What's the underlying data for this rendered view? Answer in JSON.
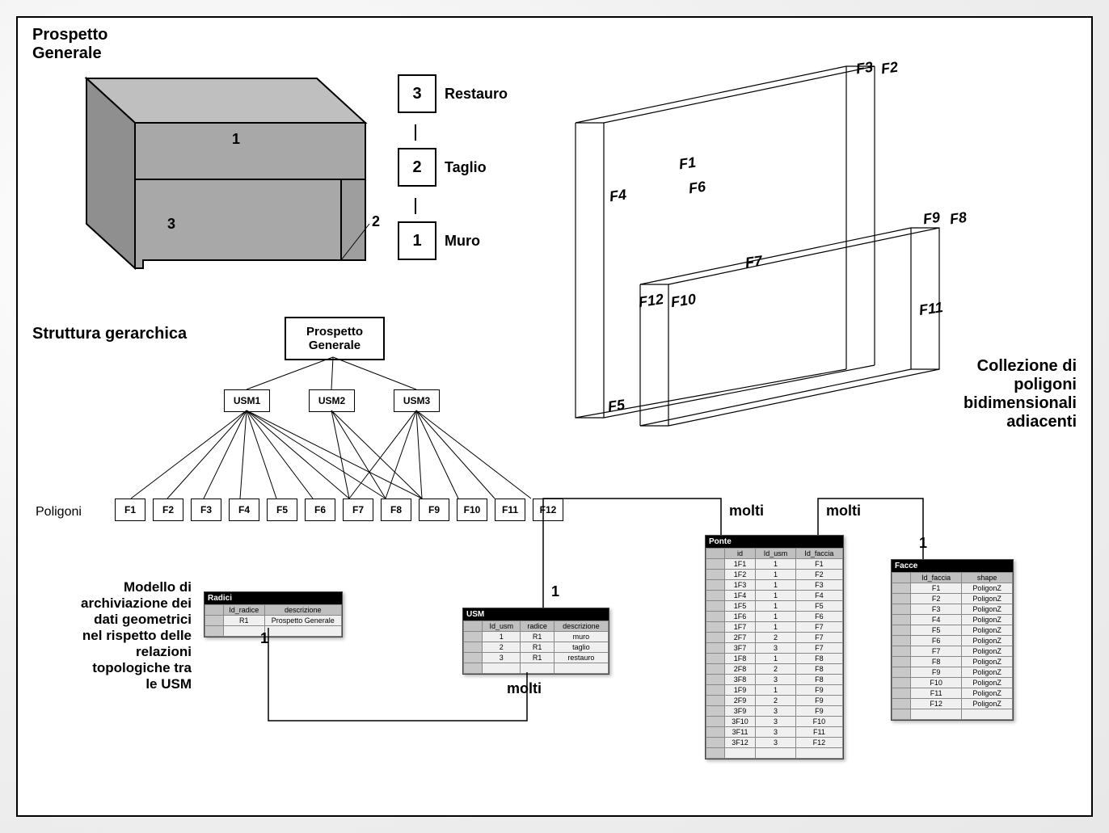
{
  "titles": {
    "prospetto": "Prospetto\nGenerale",
    "struttura": "Struttura gerarchica",
    "collezione": "Collezione di\npoligoni\nbidimensionali\nadiacenti",
    "modello": "Modello di\narchiviazione dei\ndati geometrici\nnel rispetto delle\nrelazioni\ntopologiche tra\nle USM"
  },
  "legend": [
    {
      "num": "3",
      "label": "Restauro"
    },
    {
      "num": "2",
      "label": "Taglio"
    },
    {
      "num": "1",
      "label": "Muro"
    }
  ],
  "solid_labels": {
    "a": "1",
    "b": "3",
    "c": "2"
  },
  "tree": {
    "root": "Prospetto\nGenerale",
    "usm": [
      "USM1",
      "USM2",
      "USM3"
    ],
    "poligoni_label": "Poligoni",
    "poligoni": [
      "F1",
      "F2",
      "F3",
      "F4",
      "F5",
      "F6",
      "F7",
      "F8",
      "F9",
      "F10",
      "F11",
      "F12"
    ]
  },
  "face_labels": [
    "F1",
    "F2",
    "F3",
    "F4",
    "F5",
    "F6",
    "F7",
    "F8",
    "F9",
    "F10",
    "F11",
    "F12"
  ],
  "rel": {
    "one": "1",
    "many": "molti"
  },
  "tables": {
    "radici": {
      "name": "Radici",
      "cols": [
        "Id_radice",
        "descrizione"
      ],
      "rows": [
        [
          "R1",
          "Prospetto Generale"
        ]
      ]
    },
    "usm": {
      "name": "USM",
      "cols": [
        "Id_usm",
        "radice",
        "descrizione"
      ],
      "rows": [
        [
          "1",
          "R1",
          "muro"
        ],
        [
          "2",
          "R1",
          "taglio"
        ],
        [
          "3",
          "R1",
          "restauro"
        ]
      ]
    },
    "ponte": {
      "name": "Ponte",
      "cols": [
        "id",
        "Id_usm",
        "Id_faccia"
      ],
      "rows": [
        [
          "1F1",
          "1",
          "F1"
        ],
        [
          "1F2",
          "1",
          "F2"
        ],
        [
          "1F3",
          "1",
          "F3"
        ],
        [
          "1F4",
          "1",
          "F4"
        ],
        [
          "1F5",
          "1",
          "F5"
        ],
        [
          "1F6",
          "1",
          "F6"
        ],
        [
          "1F7",
          "1",
          "F7"
        ],
        [
          "2F7",
          "2",
          "F7"
        ],
        [
          "3F7",
          "3",
          "F7"
        ],
        [
          "1F8",
          "1",
          "F8"
        ],
        [
          "2F8",
          "2",
          "F8"
        ],
        [
          "3F8",
          "3",
          "F8"
        ],
        [
          "1F9",
          "1",
          "F9"
        ],
        [
          "2F9",
          "2",
          "F9"
        ],
        [
          "3F9",
          "3",
          "F9"
        ],
        [
          "3F10",
          "3",
          "F10"
        ],
        [
          "3F11",
          "3",
          "F11"
        ],
        [
          "3F12",
          "3",
          "F12"
        ]
      ]
    },
    "facce": {
      "name": "Facce",
      "cols": [
        "Id_faccia",
        "shape"
      ],
      "rows": [
        [
          "F1",
          "PoligonZ"
        ],
        [
          "F2",
          "PoligonZ"
        ],
        [
          "F3",
          "PoligonZ"
        ],
        [
          "F4",
          "PoligonZ"
        ],
        [
          "F5",
          "PoligonZ"
        ],
        [
          "F6",
          "PoligonZ"
        ],
        [
          "F7",
          "PoligonZ"
        ],
        [
          "F8",
          "PoligonZ"
        ],
        [
          "F9",
          "PoligonZ"
        ],
        [
          "F10",
          "PoligonZ"
        ],
        [
          "F11",
          "PoligonZ"
        ],
        [
          "F12",
          "PoligonZ"
        ]
      ]
    }
  },
  "colors": {
    "solid_top": "#bfbfbf",
    "solid_front": "#a8a8a8",
    "solid_side": "#8f8f8f",
    "border": "#000000",
    "bg": "#ffffff"
  }
}
